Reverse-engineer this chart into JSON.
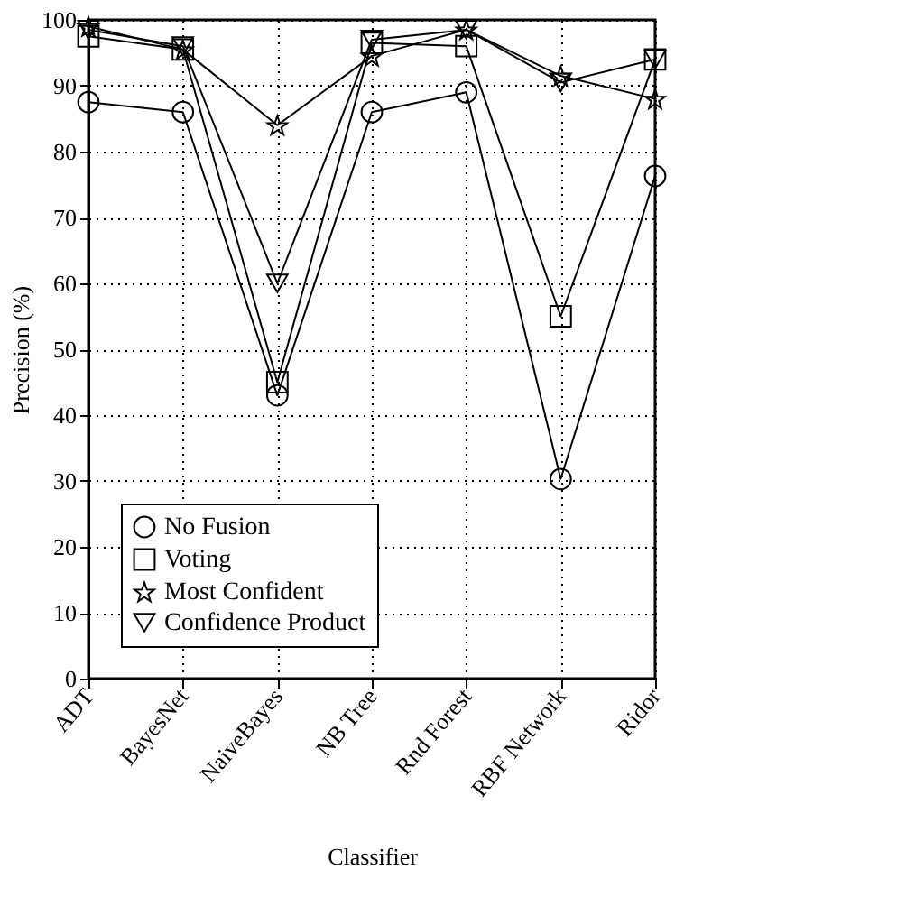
{
  "chart_data": {
    "type": "line",
    "xlabel": "Classifier",
    "ylabel": "Precision (%)",
    "categories": [
      "ADT",
      "BayesNet",
      "NaiveBayes",
      "NB Tree",
      "Rnd Forest",
      "RBF Network",
      "Ridor"
    ],
    "ylim": [
      0,
      100
    ],
    "yticks": [
      0,
      10,
      20,
      30,
      40,
      50,
      60,
      70,
      80,
      90,
      100
    ],
    "grid": true,
    "legend": "bottom left",
    "line_style": "solid",
    "series": [
      {
        "name": "No Fusion",
        "color": "#000000",
        "marker": "circle",
        "values": [
          87.5,
          86,
          43,
          86,
          89,
          30.3,
          76.3
        ]
      },
      {
        "name": "Voting",
        "color": "#000000",
        "marker": "square",
        "values": [
          97.5,
          95.5,
          45,
          96.5,
          96,
          55,
          94
        ]
      },
      {
        "name": "Most Confident",
        "color": "#000000",
        "marker": "star",
        "values": [
          99,
          95.5,
          84,
          94.5,
          98.5,
          91.5,
          88
        ]
      },
      {
        "name": "Confidence Product",
        "color": "#000000",
        "marker": "triangle",
        "values": [
          98.5,
          96,
          60,
          97,
          98.5,
          90.5,
          94
        ]
      }
    ]
  }
}
